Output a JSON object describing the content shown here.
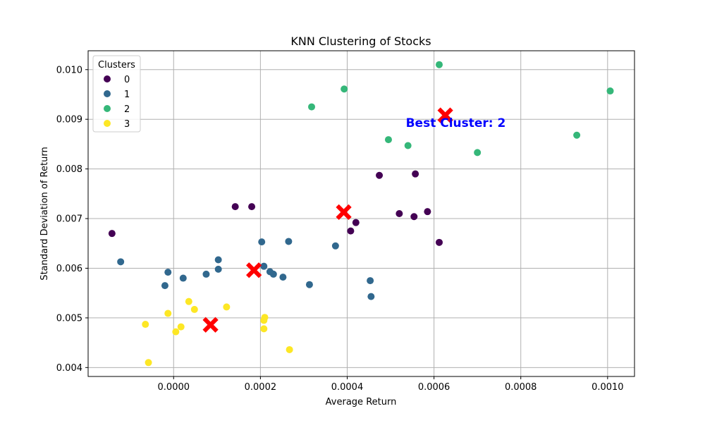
{
  "chart_data": {
    "type": "scatter",
    "title": "KNN Clustering of Stocks",
    "xlabel": "Average Return",
    "ylabel": "Standard Deviation of Return",
    "xlim": [
      -0.000197,
      0.001062
    ],
    "ylim": [
      0.00382,
      0.01038
    ],
    "xticks": [
      {
        "value": 0.0,
        "label": "0.0000"
      },
      {
        "value": 0.0002,
        "label": "0.0002"
      },
      {
        "value": 0.0004,
        "label": "0.0004"
      },
      {
        "value": 0.0006,
        "label": "0.0006"
      },
      {
        "value": 0.0008,
        "label": "0.0008"
      },
      {
        "value": 0.001,
        "label": "0.0010"
      }
    ],
    "yticks": [
      {
        "value": 0.004,
        "label": "0.004"
      },
      {
        "value": 0.005,
        "label": "0.005"
      },
      {
        "value": 0.006,
        "label": "0.006"
      },
      {
        "value": 0.007,
        "label": "0.007"
      },
      {
        "value": 0.008,
        "label": "0.008"
      },
      {
        "value": 0.009,
        "label": "0.009"
      },
      {
        "value": 0.01,
        "label": "0.010"
      }
    ],
    "grid": true,
    "legend": {
      "title": "Clusters",
      "placement": "top-left",
      "entries": [
        {
          "label": "0",
          "color": "#440154"
        },
        {
          "label": "1",
          "color": "#31688e"
        },
        {
          "label": "2",
          "color": "#35b779"
        },
        {
          "label": "3",
          "color": "#fde725"
        }
      ]
    },
    "series": [
      {
        "cluster": "0",
        "color": "#440154",
        "points": [
          {
            "x": -0.000142,
            "y": 0.0067
          },
          {
            "x": 0.000142,
            "y": 0.00724
          },
          {
            "x": 0.00018,
            "y": 0.00724
          },
          {
            "x": 0.000408,
            "y": 0.00675
          },
          {
            "x": 0.00042,
            "y": 0.00692
          },
          {
            "x": 0.000474,
            "y": 0.00787
          },
          {
            "x": 0.00052,
            "y": 0.0071
          },
          {
            "x": 0.000554,
            "y": 0.00704
          },
          {
            "x": 0.000557,
            "y": 0.0079
          },
          {
            "x": 0.000585,
            "y": 0.00714
          },
          {
            "x": 0.000612,
            "y": 0.00652
          }
        ]
      },
      {
        "cluster": "1",
        "color": "#31688e",
        "points": [
          {
            "x": -0.000122,
            "y": 0.00613
          },
          {
            "x": -2e-05,
            "y": 0.00565
          },
          {
            "x": -1.3e-05,
            "y": 0.00592
          },
          {
            "x": 2.2e-05,
            "y": 0.0058
          },
          {
            "x": 7.5e-05,
            "y": 0.00588
          },
          {
            "x": 0.000103,
            "y": 0.00617
          },
          {
            "x": 0.000103,
            "y": 0.00598
          },
          {
            "x": 0.000203,
            "y": 0.00653
          },
          {
            "x": 0.000208,
            "y": 0.00604
          },
          {
            "x": 0.000222,
            "y": 0.00593
          },
          {
            "x": 0.00023,
            "y": 0.00588
          },
          {
            "x": 0.000252,
            "y": 0.00582
          },
          {
            "x": 0.000265,
            "y": 0.00654
          },
          {
            "x": 0.000313,
            "y": 0.00567
          },
          {
            "x": 0.000373,
            "y": 0.00645
          },
          {
            "x": 0.000453,
            "y": 0.00575
          },
          {
            "x": 0.000455,
            "y": 0.00543
          }
        ]
      },
      {
        "cluster": "2",
        "color": "#35b779",
        "points": [
          {
            "x": 0.000318,
            "y": 0.00925
          },
          {
            "x": 0.000393,
            "y": 0.00961
          },
          {
            "x": 0.000495,
            "y": 0.00859
          },
          {
            "x": 0.00054,
            "y": 0.00847
          },
          {
            "x": 0.000612,
            "y": 0.0101
          },
          {
            "x": 0.0007,
            "y": 0.00833
          },
          {
            "x": 0.000929,
            "y": 0.00868
          },
          {
            "x": 0.001006,
            "y": 0.00957
          }
        ]
      },
      {
        "cluster": "3",
        "color": "#fde725",
        "points": [
          {
            "x": -6.5e-05,
            "y": 0.00487
          },
          {
            "x": -5.8e-05,
            "y": 0.0041
          },
          {
            "x": -1.3e-05,
            "y": 0.00509
          },
          {
            "x": 5e-06,
            "y": 0.00472
          },
          {
            "x": 1.7e-05,
            "y": 0.00482
          },
          {
            "x": 3.5e-05,
            "y": 0.00533
          },
          {
            "x": 4.8e-05,
            "y": 0.00517
          },
          {
            "x": 0.000122,
            "y": 0.00522
          },
          {
            "x": 0.000208,
            "y": 0.00495
          },
          {
            "x": 0.00021,
            "y": 0.00501
          },
          {
            "x": 0.000208,
            "y": 0.00478
          },
          {
            "x": 0.000267,
            "y": 0.00436
          }
        ]
      }
    ],
    "centroids": {
      "marker": "X",
      "color": "#ff0000",
      "points": [
        {
          "x": 8.5e-05,
          "y": 0.00486
        },
        {
          "x": 0.000185,
          "y": 0.00596
        },
        {
          "x": 0.000392,
          "y": 0.00713
        },
        {
          "x": 0.000626,
          "y": 0.00908
        }
      ]
    },
    "annotation": {
      "text": "Best Cluster: 2",
      "x": 0.000535,
      "y": 0.00893,
      "color": "#0000ff"
    }
  }
}
